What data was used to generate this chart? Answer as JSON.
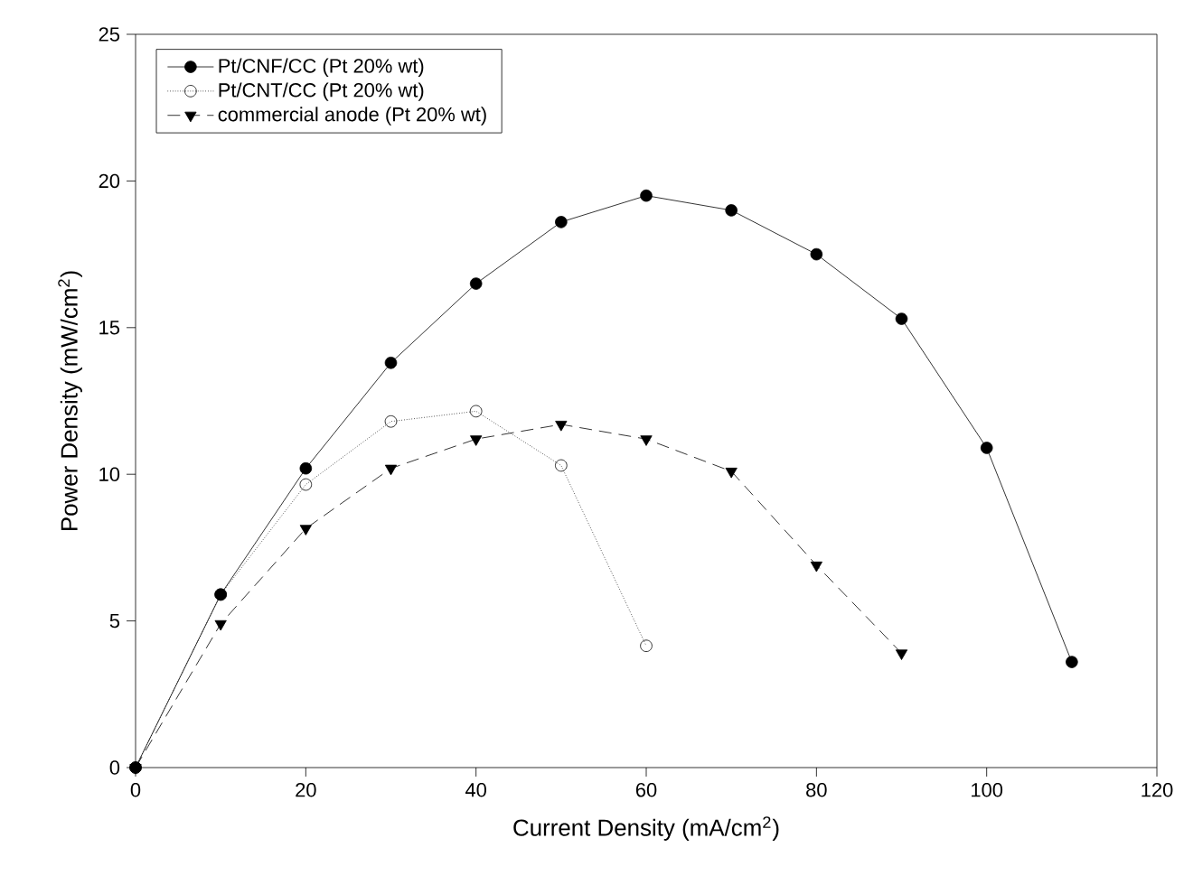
{
  "chart_data": {
    "type": "line",
    "xlabel": "Current Density (mA/cm$^{2}$)",
    "ylabel": "Power Density (mW/cm$^{2}$)",
    "x": [
      0,
      10,
      20,
      30,
      40,
      50,
      60,
      70,
      80,
      90,
      100,
      110
    ],
    "series": [
      {
        "name": "Pt/CNF/CC  (Pt 20% wt)",
        "color": "#000000",
        "marker": "circle",
        "line_style": "solid",
        "values": [
          0,
          5.9,
          10.2,
          13.8,
          16.5,
          18.6,
          19.5,
          19.0,
          17.5,
          15.3,
          10.9,
          3.6
        ]
      },
      {
        "name": "Pt/CNT/CC  (Pt 20% wt)",
        "color": "#000000",
        "marker": "circle_open",
        "line_style": "dotted",
        "x": [
          0,
          10,
          20,
          30,
          40,
          50,
          60
        ],
        "values": [
          0,
          5.9,
          9.65,
          11.8,
          12.15,
          10.3,
          4.15
        ]
      },
      {
        "name": "commercial anode (Pt 20% wt)",
        "color": "#000000",
        "marker": "triangle_down",
        "line_style": "dashed",
        "x": [
          0,
          10,
          20,
          30,
          40,
          50,
          60,
          70,
          80,
          90
        ],
        "values": [
          0,
          4.9,
          8.15,
          10.2,
          11.2,
          11.7,
          11.2,
          10.1,
          6.9,
          3.9
        ]
      }
    ],
    "xlim": [
      0,
      120
    ],
    "ylim": [
      0,
      25
    ],
    "xticks": [
      0,
      20,
      40,
      60,
      80,
      100,
      120
    ],
    "yticks": [
      0,
      5,
      10,
      15,
      20,
      25
    ],
    "grid": false,
    "legend": "top left"
  }
}
